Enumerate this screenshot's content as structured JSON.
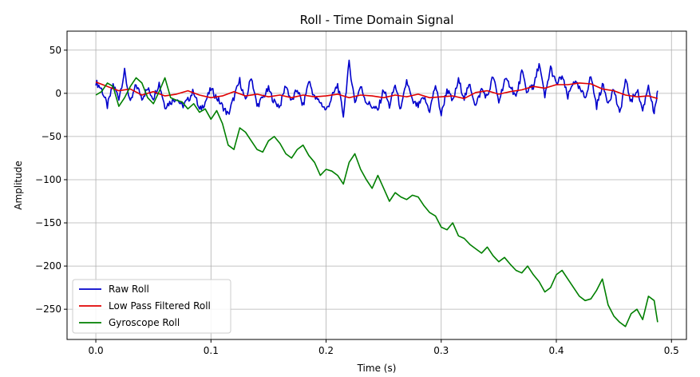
{
  "chart_data": {
    "type": "line",
    "title": "Roll - Time Domain Signal",
    "xlabel": "Time (s)",
    "ylabel": "Amplitude",
    "xlim": [
      -0.025,
      0.513
    ],
    "ylim": [
      -285,
      72
    ],
    "xticks": [
      0.0,
      0.1,
      0.2,
      0.3,
      0.4,
      0.5
    ],
    "xtick_labels": [
      "0.0",
      "0.1",
      "0.2",
      "0.3",
      "0.4",
      "0.5"
    ],
    "yticks": [
      50,
      0,
      -50,
      -100,
      -150,
      -200,
      -250
    ],
    "ytick_labels": [
      "50",
      "0",
      "−50",
      "−100",
      "−150",
      "−200",
      "−250"
    ],
    "grid": true,
    "legend_position": "lower-left",
    "series": [
      {
        "name": "Raw Roll",
        "color": "#0000cc",
        "x": [
          0.0,
          0.005,
          0.01,
          0.015,
          0.02,
          0.025,
          0.03,
          0.035,
          0.04,
          0.045,
          0.05,
          0.055,
          0.06,
          0.065,
          0.07,
          0.075,
          0.08,
          0.085,
          0.09,
          0.095,
          0.1,
          0.105,
          0.11,
          0.115,
          0.12,
          0.125,
          0.13,
          0.135,
          0.14,
          0.145,
          0.15,
          0.155,
          0.16,
          0.165,
          0.17,
          0.175,
          0.18,
          0.185,
          0.19,
          0.195,
          0.2,
          0.205,
          0.21,
          0.215,
          0.22,
          0.225,
          0.23,
          0.235,
          0.24,
          0.245,
          0.25,
          0.255,
          0.26,
          0.265,
          0.27,
          0.275,
          0.28,
          0.285,
          0.29,
          0.295,
          0.3,
          0.305,
          0.31,
          0.315,
          0.32,
          0.325,
          0.33,
          0.335,
          0.34,
          0.345,
          0.35,
          0.355,
          0.36,
          0.365,
          0.37,
          0.375,
          0.378,
          0.38,
          0.385,
          0.39,
          0.395,
          0.4,
          0.405,
          0.41,
          0.415,
          0.42,
          0.425,
          0.43,
          0.435,
          0.44,
          0.445,
          0.45,
          0.455,
          0.46,
          0.465,
          0.47,
          0.475,
          0.48,
          0.485,
          0.488
        ],
        "y": [
          13,
          5,
          -15,
          10,
          -5,
          25,
          -12,
          10,
          -5,
          5,
          -5,
          12,
          -15,
          -10,
          -5,
          -15,
          -8,
          3,
          -20,
          -10,
          5,
          -5,
          -15,
          -25,
          -5,
          15,
          -10,
          20,
          -15,
          -5,
          5,
          -10,
          -15,
          10,
          -10,
          5,
          -15,
          15,
          -5,
          -10,
          -20,
          -5,
          10,
          -25,
          35,
          -10,
          8,
          -10,
          -15,
          -20,
          5,
          -15,
          10,
          -20,
          15,
          -10,
          -15,
          -5,
          -20,
          10,
          -25,
          5,
          -10,
          15,
          -5,
          10,
          -15,
          5,
          -5,
          20,
          -10,
          15,
          10,
          -5,
          25,
          0,
          10,
          5,
          35,
          -5,
          30,
          10,
          20,
          -5,
          15,
          5,
          -5,
          20,
          -15,
          10,
          -10,
          5,
          -25,
          15,
          -10,
          5,
          -20,
          10,
          -25,
          3
        ],
        "smooth_noise": true
      },
      {
        "name": "Low Pass Filtered Roll",
        "color": "#e00000",
        "x": [
          0.0,
          0.01,
          0.02,
          0.03,
          0.04,
          0.05,
          0.06,
          0.07,
          0.08,
          0.09,
          0.1,
          0.11,
          0.12,
          0.13,
          0.14,
          0.15,
          0.16,
          0.17,
          0.18,
          0.19,
          0.2,
          0.21,
          0.22,
          0.23,
          0.24,
          0.25,
          0.26,
          0.27,
          0.28,
          0.29,
          0.3,
          0.31,
          0.32,
          0.33,
          0.34,
          0.35,
          0.36,
          0.37,
          0.38,
          0.39,
          0.4,
          0.41,
          0.42,
          0.43,
          0.44,
          0.45,
          0.46,
          0.47,
          0.48,
          0.488
        ],
        "y": [
          13,
          8,
          3,
          5,
          -2,
          2,
          -3,
          -1,
          3,
          -2,
          -5,
          -3,
          2,
          -3,
          -1,
          -4,
          -2,
          -5,
          -2,
          -4,
          -3,
          -1,
          -5,
          -2,
          -3,
          -5,
          -2,
          -4,
          -1,
          -5,
          -4,
          -3,
          -6,
          1,
          3,
          -1,
          2,
          4,
          8,
          6,
          10,
          10,
          12,
          11,
          5,
          3,
          -2,
          -4,
          -3,
          -6
        ]
      },
      {
        "name": "Gyroscope Roll",
        "color": "#007f00",
        "x": [
          0.0,
          0.005,
          0.01,
          0.015,
          0.02,
          0.025,
          0.03,
          0.035,
          0.04,
          0.045,
          0.05,
          0.055,
          0.06,
          0.065,
          0.07,
          0.075,
          0.08,
          0.085,
          0.09,
          0.095,
          0.1,
          0.105,
          0.11,
          0.115,
          0.12,
          0.125,
          0.13,
          0.135,
          0.14,
          0.145,
          0.15,
          0.155,
          0.16,
          0.165,
          0.17,
          0.175,
          0.18,
          0.185,
          0.19,
          0.195,
          0.2,
          0.205,
          0.21,
          0.215,
          0.22,
          0.225,
          0.23,
          0.235,
          0.24,
          0.245,
          0.25,
          0.255,
          0.26,
          0.265,
          0.27,
          0.275,
          0.28,
          0.285,
          0.29,
          0.295,
          0.3,
          0.305,
          0.31,
          0.315,
          0.32,
          0.325,
          0.33,
          0.335,
          0.34,
          0.345,
          0.35,
          0.355,
          0.36,
          0.365,
          0.37,
          0.375,
          0.38,
          0.385,
          0.39,
          0.395,
          0.4,
          0.405,
          0.41,
          0.415,
          0.42,
          0.425,
          0.43,
          0.435,
          0.44,
          0.445,
          0.45,
          0.455,
          0.46,
          0.465,
          0.47,
          0.475,
          0.48,
          0.485,
          0.488
        ],
        "y": [
          -2,
          2,
          12,
          8,
          -15,
          -5,
          8,
          18,
          12,
          -5,
          -12,
          2,
          18,
          -5,
          -8,
          -10,
          -18,
          -12,
          -22,
          -18,
          -30,
          -20,
          -35,
          -60,
          -65,
          -40,
          -45,
          -55,
          -65,
          -68,
          -55,
          -50,
          -58,
          -70,
          -75,
          -65,
          -60,
          -72,
          -80,
          -95,
          -88,
          -90,
          -95,
          -105,
          -80,
          -70,
          -88,
          -100,
          -110,
          -95,
          -110,
          -125,
          -115,
          -120,
          -123,
          -118,
          -120,
          -130,
          -138,
          -142,
          -155,
          -158,
          -150,
          -165,
          -168,
          -175,
          -180,
          -185,
          -178,
          -188,
          -195,
          -190,
          -198,
          -205,
          -208,
          -200,
          -210,
          -218,
          -230,
          -225,
          -210,
          -205,
          -215,
          -225,
          -235,
          -240,
          -238,
          -228,
          -215,
          -245,
          -258,
          -265,
          -270,
          -255,
          -250,
          -262,
          -235,
          -240,
          -265
        ]
      }
    ]
  }
}
